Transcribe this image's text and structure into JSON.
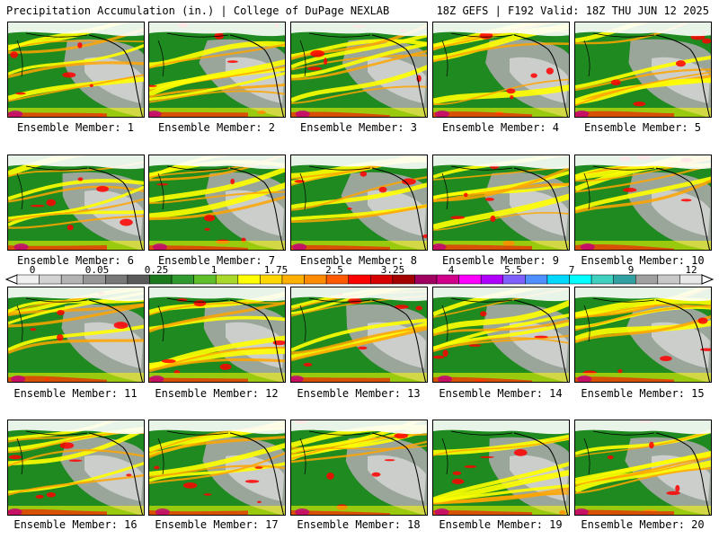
{
  "header": {
    "left_title": "Precipitation Accumulation (in.) | College of DuPage NEXLAB",
    "right_title": "18Z GEFS | F192 Valid: 18Z THU JUN 12 2025"
  },
  "members": [
    {
      "label": "Ensemble Member: 1"
    },
    {
      "label": "Ensemble Member: 2"
    },
    {
      "label": "Ensemble Member: 3"
    },
    {
      "label": "Ensemble Member: 4"
    },
    {
      "label": "Ensemble Member: 5"
    },
    {
      "label": "Ensemble Member: 6"
    },
    {
      "label": "Ensemble Member: 7"
    },
    {
      "label": "Ensemble Member: 8"
    },
    {
      "label": "Ensemble Member: 9"
    },
    {
      "label": "Ensemble Member: 10"
    },
    {
      "label": "Ensemble Member: 11"
    },
    {
      "label": "Ensemble Member: 12"
    },
    {
      "label": "Ensemble Member: 13"
    },
    {
      "label": "Ensemble Member: 14"
    },
    {
      "label": "Ensemble Member: 15"
    },
    {
      "label": "Ensemble Member: 16"
    },
    {
      "label": "Ensemble Member: 17"
    },
    {
      "label": "Ensemble Member: 18"
    },
    {
      "label": "Ensemble Member: 19"
    },
    {
      "label": "Ensemble Member: 20"
    }
  ],
  "colorbar": {
    "tick_labels": [
      "0",
      "0.05",
      "0.25",
      "1",
      "1.75",
      "2.5",
      "3.25",
      "4",
      "5.5",
      "7",
      "9",
      "12"
    ],
    "colors": [
      "#f0f0f0",
      "#d2d2d2",
      "#b4b4b4",
      "#969696",
      "#787878",
      "#5a5a5a",
      "#1b7a1b",
      "#2f9a2f",
      "#5fbf2a",
      "#a8d82a",
      "#ffff00",
      "#ffd700",
      "#ffb000",
      "#ff8c00",
      "#ff5a00",
      "#ff0000",
      "#d60000",
      "#a50000",
      "#a00060",
      "#d0008a",
      "#ff00ff",
      "#b000ff",
      "#7f60ff",
      "#4f8fff",
      "#00d8ff",
      "#00ffff",
      "#40d0c0",
      "#30a0a0",
      "#a0a0a0",
      "#c8c8c8",
      "#e8e8e8"
    ]
  },
  "map_colors": {
    "ocean_base": "#1f8a1f",
    "dry": "#a9a9a9",
    "light": "#e0e0e0",
    "moderate": "#ffff00",
    "heavy": "#ffa500",
    "very_heavy": "#ff0000",
    "extreme": "#c0007a",
    "coastline": "#000000"
  }
}
